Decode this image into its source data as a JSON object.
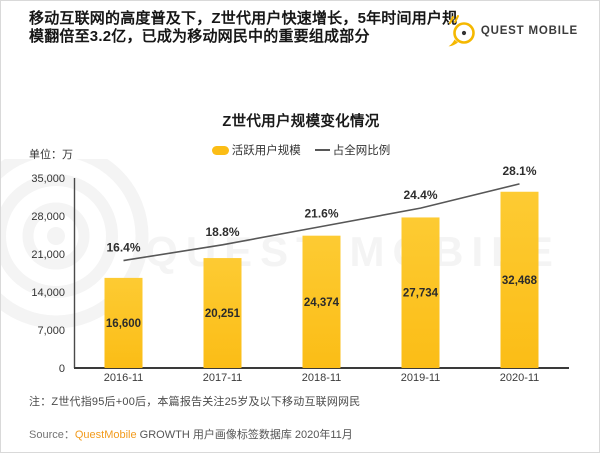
{
  "header": {
    "title_line1": "移动互联网的高度普及下，Z世代用户快速增长，5年时间用户规",
    "title_line2": "模翻倍至3.2亿，已成为移动网民中的重要组成部分"
  },
  "logo": {
    "wordmark": "QUEST MOBILE"
  },
  "watermark": {
    "text": "QUEST MOBILE"
  },
  "chart": {
    "title": "Z世代用户规模变化情况",
    "unit_label": "单位：万",
    "legend": {
      "bar_label": "活跃用户规模",
      "line_label": "占全网比例"
    }
  },
  "chart_data": {
    "type": "bar",
    "title": "Z世代用户规模变化情况",
    "categories": [
      "2016-11",
      "2017-11",
      "2018-11",
      "2019-11",
      "2020-11"
    ],
    "series": [
      {
        "name": "活跃用户规模",
        "type": "bar",
        "unit": "万",
        "values": [
          16600,
          20251,
          24374,
          27734,
          32468
        ]
      },
      {
        "name": "占全网比例",
        "type": "line",
        "unit": "%",
        "values": [
          16.4,
          18.8,
          21.6,
          24.4,
          28.1
        ]
      }
    ],
    "xlabel": "",
    "ylabel": "单位：万",
    "ylim": [
      0,
      35000
    ],
    "yticks": [
      0,
      7000,
      14000,
      21000,
      28000,
      35000
    ],
    "y2lim": [
      0,
      29
    ],
    "legend_position": "top",
    "grid": false
  },
  "footer": {
    "note": "注：Z世代指95后+00后，本篇报告关注25岁及以下移动互联网网民",
    "source_prefix": "Source：",
    "source_brand": "QuestMobile",
    "source_rest": " GROWTH 用户画像标签数据库 2020年11月"
  },
  "colors": {
    "bar": "#FBBD16",
    "bar_light": "#FDCB33",
    "line": "#575757",
    "logo_yellow": "#F5B800",
    "brand_orange": "#F29B1D",
    "watermark": "#F4F4F4"
  }
}
